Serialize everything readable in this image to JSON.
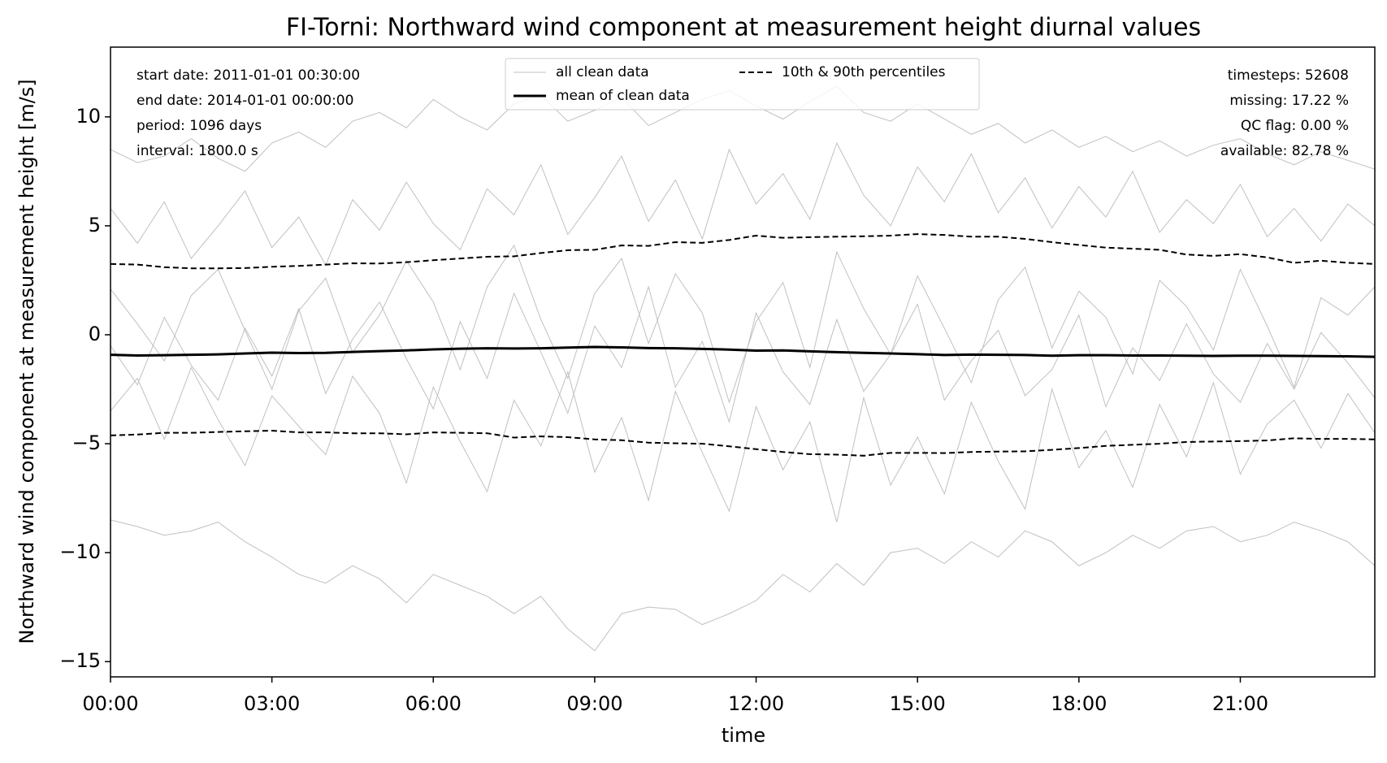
{
  "chart_data": {
    "type": "line",
    "title": "FI-Torni: Northward wind component at measurement height diurnal values",
    "xlabel": "time",
    "ylabel": "Northward wind component at measurement height [m/s]",
    "x": [
      0,
      0.5,
      1,
      1.5,
      2,
      2.5,
      3,
      3.5,
      4,
      4.5,
      5,
      5.5,
      6,
      6.5,
      7,
      7.5,
      8,
      8.5,
      9,
      9.5,
      10,
      10.5,
      11,
      11.5,
      12,
      12.5,
      13,
      13.5,
      14,
      14.5,
      15,
      15.5,
      16,
      16.5,
      17,
      17.5,
      18,
      18.5,
      19,
      19.5,
      20,
      20.5,
      21,
      21.5,
      22,
      22.5,
      23,
      23.5
    ],
    "xlim": [
      0,
      23.5
    ],
    "xticks": [
      {
        "value": 0,
        "label": "00:00"
      },
      {
        "value": 3,
        "label": "03:00"
      },
      {
        "value": 6,
        "label": "06:00"
      },
      {
        "value": 9,
        "label": "09:00"
      },
      {
        "value": 12,
        "label": "12:00"
      },
      {
        "value": 15,
        "label": "15:00"
      },
      {
        "value": 18,
        "label": "18:00"
      },
      {
        "value": 21,
        "label": "21:00"
      }
    ],
    "ylim": [
      -15.7,
      13.2
    ],
    "yticks": [
      {
        "value": -15,
        "label": "−15"
      },
      {
        "value": -10,
        "label": "−10"
      },
      {
        "value": -5,
        "label": "−5"
      },
      0,
      5,
      10
    ],
    "legend": "upper center",
    "series": [
      {
        "name": "all clean data",
        "color": "#c0c0c0",
        "width": 1,
        "dash": "none",
        "values": [
          [
            -8.5,
            -8.8,
            -9.2,
            -9.0,
            -8.6,
            -9.5,
            -10.2,
            -11.0,
            -11.4,
            -10.6,
            -11.2,
            -12.3,
            -11.0,
            -11.5,
            -12.0,
            -12.8,
            -12.0,
            -13.5,
            -14.5,
            -12.8,
            -12.5,
            -12.6,
            -13.3,
            -12.8,
            -12.2,
            -11.0,
            -11.8,
            -10.5,
            -11.5,
            -10.0,
            -9.8,
            -10.5,
            -9.5,
            -10.2,
            -9.0,
            -9.5,
            -10.6,
            -10.0,
            -9.2,
            -9.8,
            -9.0,
            -8.8,
            -9.5,
            -9.2,
            -8.6,
            -9.0,
            -9.5,
            -10.6
          ],
          [
            8.5,
            7.9,
            8.2,
            9.0,
            8.1,
            7.5,
            8.8,
            9.3,
            8.6,
            9.8,
            10.2,
            9.5,
            10.8,
            10.0,
            9.4,
            10.6,
            11.0,
            9.8,
            10.3,
            10.9,
            9.6,
            10.2,
            10.8,
            11.2,
            10.5,
            9.9,
            10.7,
            11.4,
            10.2,
            9.8,
            10.6,
            9.9,
            9.2,
            9.7,
            8.8,
            9.4,
            8.6,
            9.1,
            8.4,
            8.9,
            8.2,
            8.7,
            9.0,
            8.3,
            7.8,
            8.4,
            8.0,
            7.6
          ],
          [
            2.1,
            0.5,
            -1.2,
            1.8,
            3.0,
            0.2,
            -2.5,
            1.1,
            2.6,
            -0.8,
            0.9,
            3.4,
            1.5,
            -1.6,
            2.2,
            4.1,
            0.7,
            -2.0,
            1.9,
            3.5,
            -0.4,
            2.8,
            1.0,
            -3.1,
            0.6,
            2.4,
            -1.5,
            3.8,
            1.2,
            -0.9,
            2.7,
            0.3,
            -2.2,
            1.6,
            3.1,
            -0.6,
            2.0,
            0.8,
            -1.8,
            2.5,
            1.3,
            -0.7,
            3.0,
            0.4,
            -2.4,
            1.7,
            0.9,
            2.2
          ],
          [
            -3.5,
            -2.0,
            -4.8,
            -1.5,
            -3.9,
            -6.0,
            -2.8,
            -4.2,
            -5.5,
            -1.9,
            -3.6,
            -6.8,
            -2.4,
            -4.9,
            -7.2,
            -3.0,
            -5.1,
            -1.7,
            -6.3,
            -3.8,
            -7.6,
            -2.6,
            -5.4,
            -8.1,
            -3.3,
            -6.2,
            -4.0,
            -8.6,
            -2.9,
            -6.9,
            -4.7,
            -7.3,
            -3.1,
            -5.8,
            -8.0,
            -2.5,
            -6.1,
            -4.4,
            -7.0,
            -3.2,
            -5.6,
            -2.2,
            -6.4,
            -4.1,
            -3.0,
            -5.2,
            -2.7,
            -4.5
          ],
          [
            5.8,
            4.2,
            6.1,
            3.5,
            5.0,
            6.6,
            4.0,
            5.4,
            3.2,
            6.2,
            4.8,
            7.0,
            5.1,
            3.9,
            6.7,
            5.5,
            7.8,
            4.6,
            6.3,
            8.2,
            5.2,
            7.1,
            4.4,
            8.5,
            6.0,
            7.4,
            5.3,
            8.8,
            6.4,
            5.0,
            7.7,
            6.1,
            8.3,
            5.6,
            7.2,
            4.9,
            6.8,
            5.4,
            7.5,
            4.7,
            6.2,
            5.1,
            6.9,
            4.5,
            5.8,
            4.3,
            6.0,
            5.0
          ],
          [
            -0.5,
            -2.3,
            0.8,
            -1.4,
            -3.0,
            0.3,
            -1.9,
            1.2,
            -2.7,
            -0.2,
            1.5,
            -1.1,
            -3.4,
            0.6,
            -2.0,
            1.9,
            -0.8,
            -3.6,
            0.4,
            -1.5,
            2.2,
            -2.4,
            -0.3,
            -4.0,
            1.0,
            -1.7,
            -3.2,
            0.7,
            -2.6,
            -0.9,
            1.4,
            -3.0,
            -1.2,
            0.2,
            -2.8,
            -1.6,
            0.9,
            -3.3,
            -0.6,
            -2.1,
            0.5,
            -1.8,
            -3.1,
            -0.4,
            -2.5,
            0.1,
            -1.3,
            -2.9
          ]
        ]
      },
      {
        "name": "mean of clean data",
        "color": "#000000",
        "width": 3,
        "dash": "none",
        "values": [
          [
            -0.92,
            -0.95,
            -0.94,
            -0.92,
            -0.9,
            -0.86,
            -0.82,
            -0.84,
            -0.83,
            -0.79,
            -0.75,
            -0.72,
            -0.67,
            -0.64,
            -0.62,
            -0.63,
            -0.62,
            -0.59,
            -0.56,
            -0.58,
            -0.61,
            -0.62,
            -0.65,
            -0.68,
            -0.73,
            -0.72,
            -0.76,
            -0.8,
            -0.83,
            -0.86,
            -0.89,
            -0.93,
            -0.91,
            -0.92,
            -0.93,
            -0.96,
            -0.94,
            -0.94,
            -0.95,
            -0.95,
            -0.96,
            -0.97,
            -0.96,
            -0.96,
            -0.97,
            -0.98,
            -0.99,
            -1.01
          ]
        ]
      },
      {
        "name": "10th & 90th percentiles",
        "color": "#000000",
        "width": 2,
        "dash": "7 4",
        "values": [
          [
            -4.62,
            -4.58,
            -4.5,
            -4.5,
            -4.46,
            -4.43,
            -4.4,
            -4.48,
            -4.48,
            -4.52,
            -4.52,
            -4.57,
            -4.48,
            -4.5,
            -4.52,
            -4.72,
            -4.66,
            -4.7,
            -4.8,
            -4.84,
            -4.95,
            -4.98,
            -5.0,
            -5.12,
            -5.25,
            -5.38,
            -5.48,
            -5.5,
            -5.55,
            -5.42,
            -5.42,
            -5.43,
            -5.38,
            -5.36,
            -5.35,
            -5.28,
            -5.2,
            -5.1,
            -5.05,
            -5.0,
            -4.92,
            -4.9,
            -4.88,
            -4.85,
            -4.75,
            -4.78,
            -4.78,
            -4.8
          ],
          [
            3.25,
            3.22,
            3.1,
            3.05,
            3.05,
            3.06,
            3.12,
            3.16,
            3.22,
            3.28,
            3.27,
            3.33,
            3.42,
            3.5,
            3.58,
            3.6,
            3.75,
            3.88,
            3.9,
            4.1,
            4.08,
            4.25,
            4.22,
            4.35,
            4.55,
            4.45,
            4.48,
            4.5,
            4.52,
            4.55,
            4.62,
            4.58,
            4.5,
            4.5,
            4.4,
            4.25,
            4.12,
            4.0,
            3.95,
            3.9,
            3.68,
            3.62,
            3.7,
            3.55,
            3.3,
            3.4,
            3.3,
            3.25
          ]
        ]
      }
    ],
    "annotations_left": [
      "start date: 2011-01-01 00:30:00",
      "end date: 2014-01-01 00:00:00",
      "period: 1096 days",
      "interval: 1800.0 s"
    ],
    "annotations_right": [
      "timesteps: 52608",
      "missing: 17.22 %",
      "QC flag: 0.00 %",
      "available: 82.78 %"
    ]
  }
}
